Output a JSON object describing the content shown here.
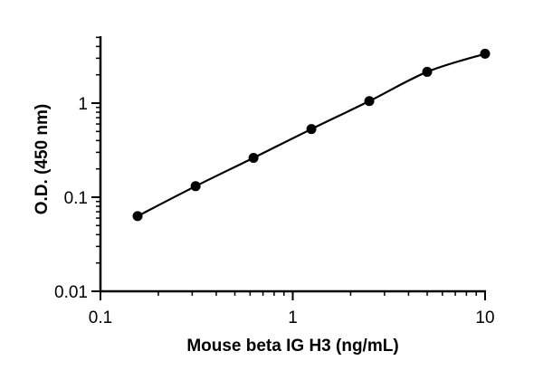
{
  "chart_data": {
    "type": "scatter",
    "title": "",
    "xlabel": "Mouse beta IG H3 (ng/mL)",
    "ylabel": "O.D. (450 nm)",
    "x_scale": "log",
    "y_scale": "log",
    "xlim": [
      0.1,
      10
    ],
    "ylim": [
      0.01,
      5
    ],
    "x_ticks": [
      {
        "value": 0.1,
        "label": "0.1"
      },
      {
        "value": 1,
        "label": "1"
      },
      {
        "value": 10,
        "label": "10"
      }
    ],
    "y_ticks": [
      {
        "value": 0.01,
        "label": "0.01"
      },
      {
        "value": 0.1,
        "label": "0.1"
      },
      {
        "value": 1,
        "label": "1"
      }
    ],
    "grid": false,
    "legend": "none",
    "series": [
      {
        "x": [
          0.156,
          0.3125,
          0.625,
          1.25,
          2.5,
          5,
          10
        ],
        "y": [
          0.063,
          0.131,
          0.262,
          0.53,
          1.05,
          2.15,
          3.35
        ],
        "marker": "filled-circle",
        "fit_line": true,
        "color": "#000000"
      }
    ]
  }
}
